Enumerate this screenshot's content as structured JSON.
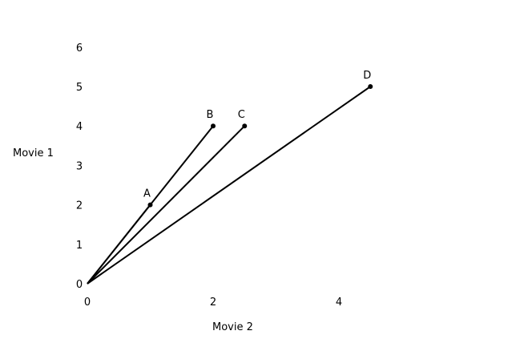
{
  "chart_data": {
    "type": "line",
    "xlabel": "Movie 2",
    "ylabel": "Movie 1",
    "xlim": [
      0,
      8
    ],
    "ylim": [
      0,
      6
    ],
    "x_ticks": [
      "0",
      "2",
      "4"
    ],
    "y_ticks": [
      "0",
      "1",
      "2",
      "3",
      "4",
      "5",
      "6"
    ],
    "grid": false,
    "origin": {
      "x": 0,
      "y": 0
    },
    "vectors": [
      {
        "label": "A",
        "x": 1,
        "y": 2
      },
      {
        "label": "B",
        "x": 2,
        "y": 4
      },
      {
        "label": "C",
        "x": 2.5,
        "y": 4
      },
      {
        "label": "D",
        "x": 4.5,
        "y": 5
      }
    ],
    "colors": {
      "line": "#000000",
      "text": "#000000"
    }
  }
}
